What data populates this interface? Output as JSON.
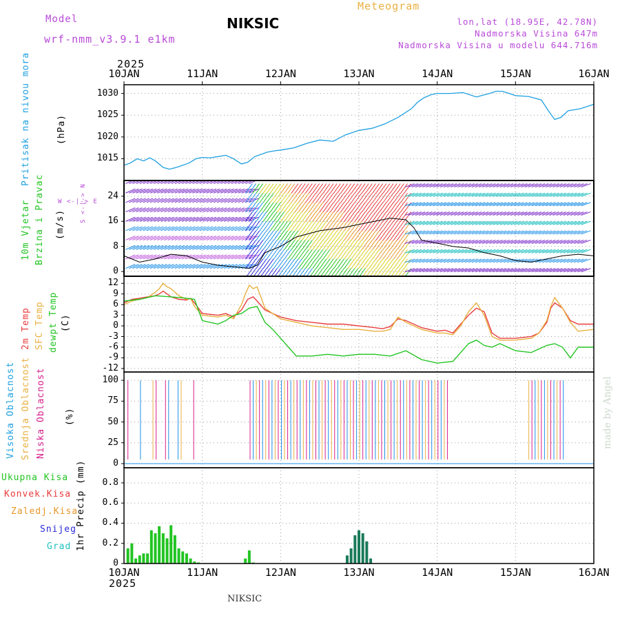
{
  "header": {
    "model_label": "Model",
    "model_name": "wrf-nmm_v3.9.1 e1km",
    "station": "NIKSIC",
    "meteogram": "Meteogram",
    "lonlat": "lon,lat (18.95E, 42.78N)",
    "elevation": "Nadmorska Visina 647m",
    "model_elevation": "Nadmorska Visina u modelu 644.716m",
    "year_top": "2025",
    "year_bottom": "2025",
    "footer_station": "NIKSIC",
    "watermark": "made by Angel"
  },
  "colors": {
    "purple": "#b84ad8",
    "gold": "#e8b040",
    "pressure": "#1ea0e0",
    "red": "#e83c3c",
    "orange": "#e89628",
    "green": "#22c422",
    "blue": "#2a2ad8",
    "cyan": "#20c0c0",
    "black": "#000000",
    "grid": "#9a9a9a"
  },
  "time_axis": {
    "start": "2025-01-10",
    "end": "2025-01-16",
    "tick_labels": [
      "10JAN",
      "11JAN",
      "12JAN",
      "13JAN",
      "14JAN",
      "15JAN",
      "16JAN"
    ]
  },
  "panels": {
    "pressure": {
      "label": "Pritisak na nivou mora",
      "unit": "(hPa)",
      "yticks": [
        "1015",
        "1020",
        "1025",
        "1030"
      ],
      "ylim": [
        1010,
        1032
      ]
    },
    "wind": {
      "label_line1": "10m Vjetar",
      "label_line2": "Brzina i Pravac",
      "unit": "(m/s)",
      "compass": "W <-|-> E",
      "compass_vert": "S <-|-> N",
      "yticks": [
        "0",
        "8",
        "16",
        "24"
      ],
      "ylim": [
        -1.5,
        29
      ]
    },
    "temperature": {
      "label_2m": "2m Temp",
      "label_sfc": "SFC Temp",
      "label_dew": "dewpt Temp",
      "unit": "(C)",
      "yticks": [
        "-12",
        "-9",
        "-6",
        "-3",
        "0",
        "3",
        "6",
        "9",
        "12"
      ],
      "ylim": [
        -13,
        14
      ]
    },
    "clouds": {
      "label_high": "Visoka Oblacnost",
      "label_mid": "Srednja Oblacnost",
      "label_low": "Niska Oblacnost",
      "unit": "(%)",
      "yticks": [
        "0",
        "25",
        "50",
        "75",
        "100"
      ],
      "ylim": [
        -5,
        110
      ]
    },
    "precip": {
      "legend": [
        "Ukupna Kisa",
        "Konvek.Kisa",
        "Zaledj.Kisa",
        "Snijeg",
        "Grad"
      ],
      "unit": "1hr Precip (mm)",
      "yticks": [
        "0",
        "0.2",
        "0.4",
        "0.6",
        "0.8"
      ],
      "ylim": [
        0,
        0.95
      ]
    }
  },
  "chart_data": {
    "type": "line",
    "title": "NIKSIC",
    "x_unit": "days since 2025-01-10 00UTC",
    "series": [
      {
        "name": "Pritisak na nivou mora",
        "panel": "pressure",
        "x": [
          0,
          0.08,
          0.17,
          0.25,
          0.33,
          0.4,
          0.5,
          0.58,
          0.67,
          0.75,
          0.83,
          0.92,
          1.0,
          1.1,
          1.2,
          1.3,
          1.4,
          1.5,
          1.58,
          1.67,
          1.75,
          1.83,
          1.92,
          2.0,
          2.17,
          2.33,
          2.5,
          2.67,
          2.83,
          3.0,
          3.17,
          3.33,
          3.5,
          3.67,
          3.75,
          3.83,
          3.92,
          4.0,
          4.17,
          4.33,
          4.5,
          4.67,
          4.75,
          4.83,
          4.92,
          5.0,
          5.17,
          5.33,
          5.42,
          5.5,
          5.58,
          5.67,
          5.83,
          6.0
        ],
        "y": [
          1013.5,
          1014.0,
          1015.0,
          1014.5,
          1015.2,
          1014.5,
          1013.0,
          1012.6,
          1013.0,
          1013.5,
          1014.0,
          1015.0,
          1015.3,
          1015.2,
          1015.5,
          1015.8,
          1015.0,
          1013.8,
          1014.2,
          1015.5,
          1016.0,
          1016.5,
          1016.8,
          1017.0,
          1017.5,
          1018.5,
          1019.3,
          1019.0,
          1020.5,
          1021.5,
          1022.0,
          1023.0,
          1024.5,
          1026.5,
          1028.0,
          1029.0,
          1029.7,
          1030.0,
          1030.0,
          1030.2,
          1029.2,
          1030.0,
          1030.5,
          1030.5,
          1030.0,
          1029.5,
          1029.3,
          1028.5,
          1026.0,
          1024.0,
          1024.5,
          1026.0,
          1026.5,
          1027.5
        ]
      },
      {
        "name": "2m Temp",
        "panel": "temperature",
        "x": [
          0,
          0.1,
          0.2,
          0.3,
          0.4,
          0.45,
          0.5,
          0.55,
          0.6,
          0.7,
          0.8,
          0.85,
          0.9,
          1.0,
          1.2,
          1.3,
          1.4,
          1.5,
          1.58,
          1.65,
          1.7,
          1.8,
          2.0,
          2.2,
          2.4,
          2.6,
          2.8,
          3.0,
          3.2,
          3.3,
          3.4,
          3.5,
          3.6,
          3.8,
          4.0,
          4.1,
          4.2,
          4.3,
          4.4,
          4.5,
          4.6,
          4.7,
          4.8,
          5.0,
          5.2,
          5.3,
          5.4,
          5.45,
          5.5,
          5.6,
          5.7,
          5.8,
          6.0
        ],
        "y": [
          6.5,
          7.5,
          7.8,
          8.2,
          8.5,
          9.0,
          9.8,
          9.0,
          8.2,
          7.5,
          7.3,
          7.8,
          6.5,
          3.5,
          3.0,
          3.5,
          2.5,
          4.5,
          7.5,
          8.2,
          7.0,
          4.5,
          2.5,
          1.5,
          1.0,
          0.5,
          0.5,
          0.0,
          -0.5,
          -0.8,
          -0.2,
          2.0,
          1.5,
          -0.5,
          -1.5,
          -1.2,
          -2.0,
          0.5,
          3.0,
          5.0,
          4.0,
          -2.0,
          -3.5,
          -3.5,
          -3.0,
          -2.0,
          1.0,
          5.0,
          6.5,
          5.0,
          1.5,
          0.5,
          0.5
        ]
      },
      {
        "name": "SFC Temp",
        "panel": "temperature",
        "x": [
          0,
          0.1,
          0.2,
          0.3,
          0.4,
          0.45,
          0.5,
          0.55,
          0.6,
          0.7,
          0.8,
          0.85,
          0.9,
          1.0,
          1.2,
          1.3,
          1.4,
          1.5,
          1.55,
          1.6,
          1.65,
          1.7,
          1.8,
          2.0,
          2.2,
          2.4,
          2.6,
          2.8,
          3.0,
          3.2,
          3.3,
          3.4,
          3.5,
          3.6,
          3.8,
          4.0,
          4.1,
          4.2,
          4.3,
          4.4,
          4.5,
          4.6,
          4.7,
          4.8,
          5.0,
          5.2,
          5.3,
          5.4,
          5.45,
          5.5,
          5.6,
          5.7,
          5.8,
          6.0
        ],
        "y": [
          6.0,
          7.0,
          7.5,
          8.0,
          9.5,
          10.5,
          12.0,
          11.0,
          10.5,
          8.5,
          7.5,
          7.8,
          5.5,
          3.0,
          2.5,
          3.0,
          2.0,
          6.0,
          9.0,
          11.5,
          10.5,
          11.0,
          5.0,
          2.0,
          1.0,
          0.0,
          -0.5,
          -1.0,
          -1.0,
          -1.5,
          -1.5,
          -1.0,
          2.5,
          1.0,
          -1.0,
          -2.0,
          -2.0,
          -2.5,
          0.0,
          4.0,
          6.5,
          3.0,
          -3.0,
          -4.0,
          -4.0,
          -3.5,
          -2.0,
          1.5,
          5.5,
          8.0,
          5.0,
          1.0,
          -1.5,
          -1.0
        ]
      },
      {
        "name": "dewpt Temp",
        "panel": "temperature",
        "x": [
          0,
          0.2,
          0.4,
          0.6,
          0.7,
          0.8,
          0.9,
          1.0,
          1.2,
          1.3,
          1.4,
          1.5,
          1.6,
          1.7,
          1.8,
          1.9,
          2.0,
          2.1,
          2.2,
          2.4,
          2.6,
          2.8,
          3.0,
          3.2,
          3.4,
          3.6,
          3.8,
          4.0,
          4.2,
          4.3,
          4.4,
          4.5,
          4.6,
          4.7,
          4.8,
          5.0,
          5.2,
          5.3,
          5.4,
          5.5,
          5.6,
          5.7,
          5.8,
          6.0
        ],
        "y": [
          7.0,
          7.5,
          8.5,
          8.2,
          8.0,
          7.8,
          7.5,
          1.5,
          0.5,
          1.5,
          3.0,
          3.5,
          5.0,
          5.5,
          1.0,
          -1.0,
          -3.5,
          -6.0,
          -8.5,
          -8.5,
          -8.0,
          -8.5,
          -8.0,
          -8.0,
          -8.5,
          -7.0,
          -9.5,
          -10.5,
          -10.0,
          -7.5,
          -5.0,
          -4.0,
          -5.5,
          -6.0,
          -5.0,
          -7.0,
          -7.5,
          -6.5,
          -5.5,
          -5.0,
          -6.0,
          -9.0,
          -6.0,
          -6.0
        ]
      }
    ],
    "wind_speed_line": {
      "name": "10m wind speed",
      "x": [
        0,
        0.2,
        0.4,
        0.6,
        0.8,
        0.9,
        1.0,
        1.2,
        1.4,
        1.6,
        1.7,
        1.8,
        2.0,
        2.2,
        2.5,
        2.8,
        3.0,
        3.2,
        3.4,
        3.6,
        3.7,
        3.8,
        4.0,
        4.2,
        4.4,
        4.6,
        4.8,
        5.0,
        5.2,
        5.4,
        5.6,
        5.8,
        6.0
      ],
      "y": [
        5.0,
        3.0,
        4.0,
        5.5,
        5.0,
        4.0,
        3.0,
        2.0,
        1.5,
        1.0,
        2.0,
        6.0,
        8.0,
        11.0,
        13.0,
        14.0,
        15.0,
        16.0,
        17.0,
        16.5,
        14.0,
        10.0,
        9.0,
        8.0,
        7.5,
        6.0,
        5.0,
        3.5,
        3.0,
        4.0,
        5.0,
        5.5,
        5.0
      ]
    },
    "precip_bars": {
      "name": "Ukupna Kisa",
      "x": [
        0.05,
        0.1,
        0.15,
        0.2,
        0.25,
        0.3,
        0.35,
        0.4,
        0.45,
        0.5,
        0.55,
        0.6,
        0.65,
        0.7,
        0.75,
        0.8,
        0.85,
        0.9,
        0.95,
        1.55,
        1.6,
        1.65,
        2.85,
        2.9,
        2.95,
        3.0,
        3.05,
        3.1,
        3.15
      ],
      "y": [
        0.15,
        0.2,
        0.05,
        0.08,
        0.1,
        0.1,
        0.33,
        0.3,
        0.37,
        0.3,
        0.25,
        0.38,
        0.28,
        0.15,
        0.12,
        0.1,
        0.05,
        0.02,
        0.01,
        0.05,
        0.13,
        0.01,
        0.08,
        0.15,
        0.28,
        0.33,
        0.3,
        0.22,
        0.05
      ]
    }
  }
}
